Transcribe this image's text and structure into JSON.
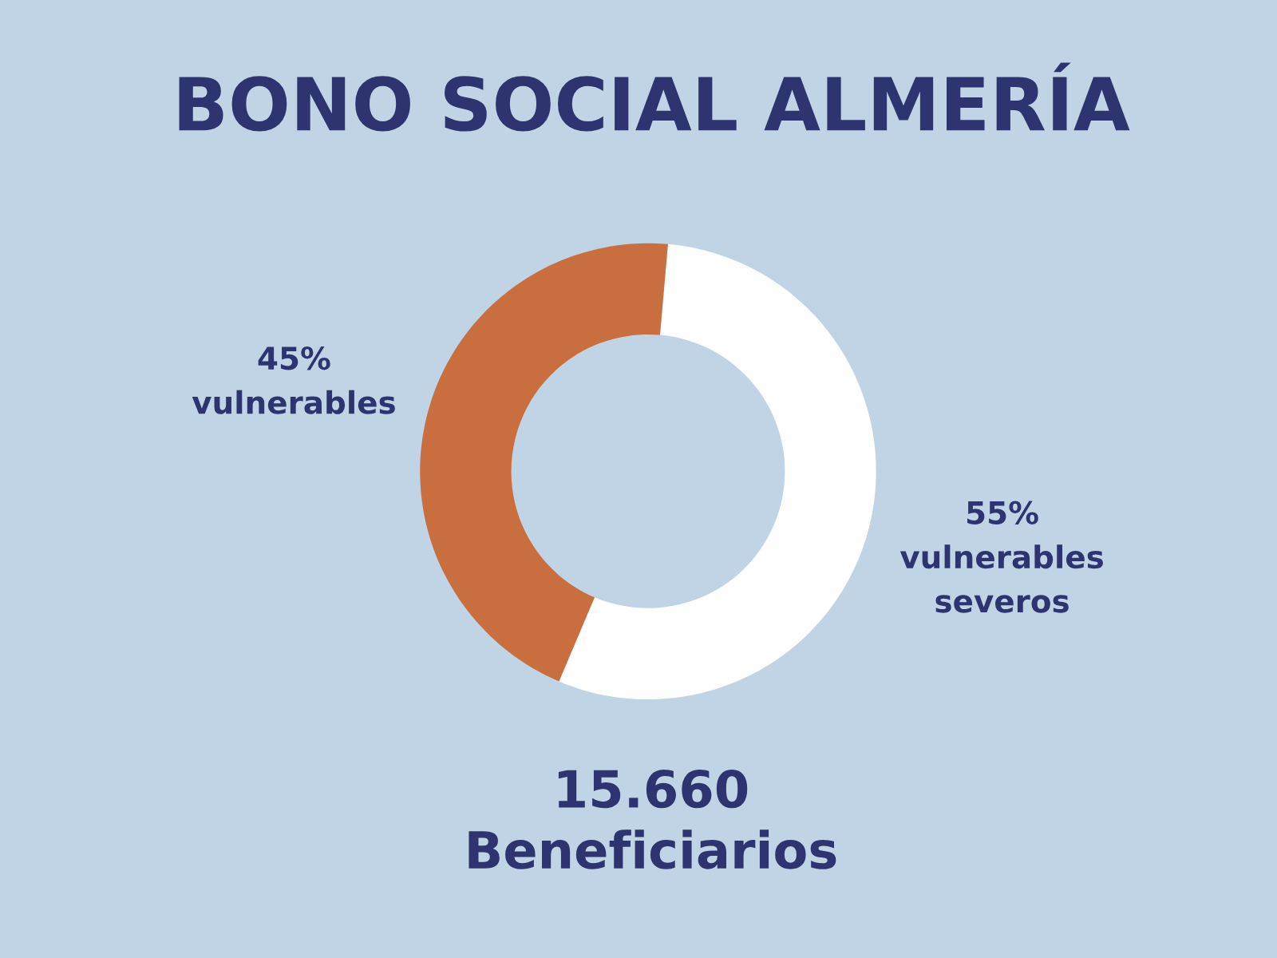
{
  "chart_data": {
    "type": "donut",
    "title": "BONO SOCIAL ALMERÍA",
    "categories": [
      "vulnerables\nseveros",
      "vulnerables"
    ],
    "values": [
      55,
      45
    ],
    "colors": [
      "#ffffff",
      "#c96e3f"
    ],
    "value_labels": [
      "55%",
      "45%"
    ],
    "annotations": [
      "15.660\nBeneficiarios"
    ]
  }
}
